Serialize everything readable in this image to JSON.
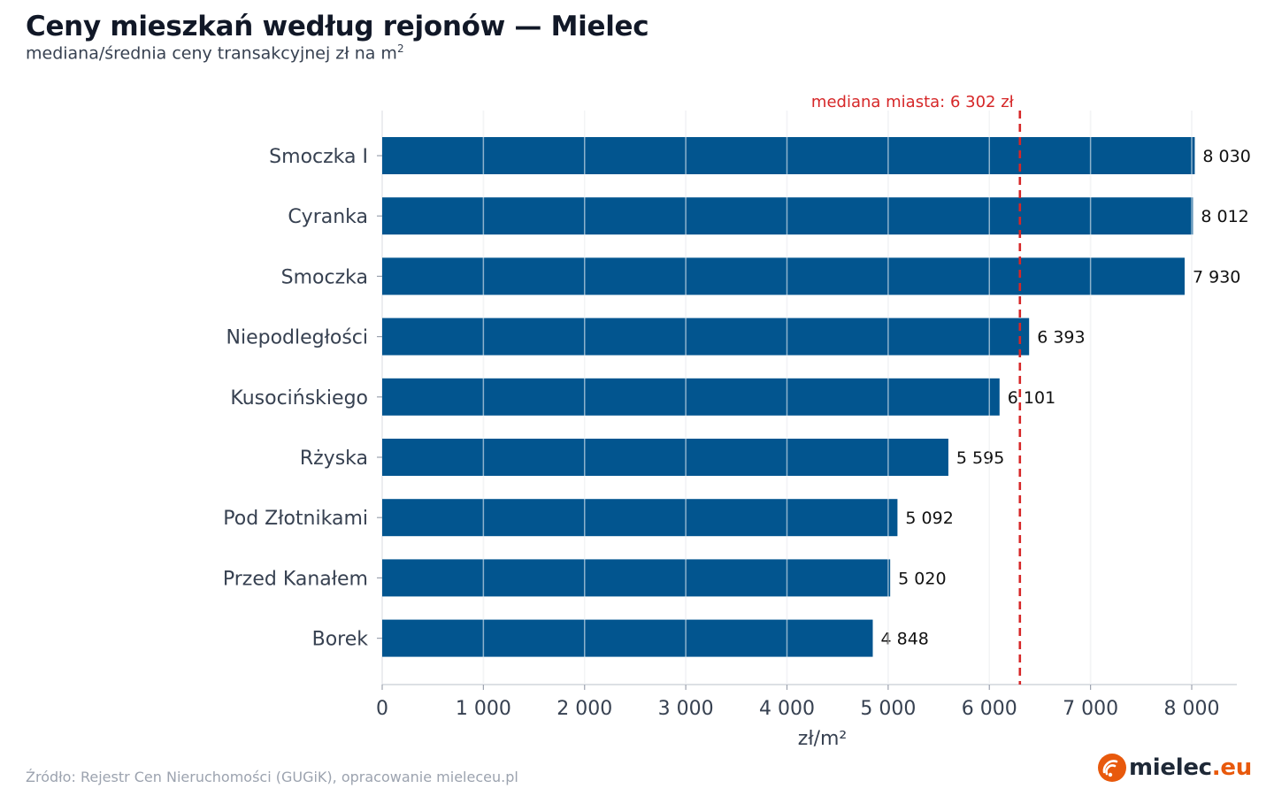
{
  "header": {
    "title": "Ceny mieszkań według rejonów — Mielec",
    "subtitle": "mediana/średnia ceny transakcyjnej zł na m",
    "subtitle_sup": "2"
  },
  "footer": {
    "source": "Źródło: Rejestr Cen Nieruchomości (GUGiK), opracowanie mieleceu.pl",
    "logo_main": "mielec",
    "logo_tld": ".eu"
  },
  "colors": {
    "bar": "#02558f",
    "median_line": "#d62728",
    "grid": "#e5e7eb",
    "axis_text": "#374151",
    "value_text": "#111111",
    "logo_accent": "#e8590c"
  },
  "chart_data": {
    "type": "bar",
    "orientation": "horizontal",
    "title": "Ceny mieszkań według rejonów — Mielec",
    "xlabel": "zł/m²",
    "ylabel": "",
    "xlim": [
      0,
      8400
    ],
    "xticks": [
      0,
      1000,
      2000,
      3000,
      4000,
      5000,
      6000,
      7000,
      8000
    ],
    "xtick_labels": [
      "0",
      "1 000",
      "2 000",
      "3 000",
      "4 000",
      "5 000",
      "6 000",
      "7 000",
      "8 000"
    ],
    "grid": true,
    "categories": [
      "Smoczka I",
      "Cyranka",
      "Smoczka",
      "Niepodległości",
      "Kusocińskiego",
      "Rżyska",
      "Pod Złotnikami",
      "Przed Kanałem",
      "Borek"
    ],
    "values": [
      8030,
      8012,
      7930,
      6393,
      6101,
      5595,
      5092,
      5020,
      4848
    ],
    "value_labels": [
      "8 030",
      "8 012",
      "7 930",
      "6 393",
      "6 101",
      "5 595",
      "5 092",
      "5 020",
      "4 848"
    ],
    "reference_line": {
      "value": 6302,
      "label": "mediana miasta: 6 302 zł",
      "style": "dashed"
    }
  }
}
